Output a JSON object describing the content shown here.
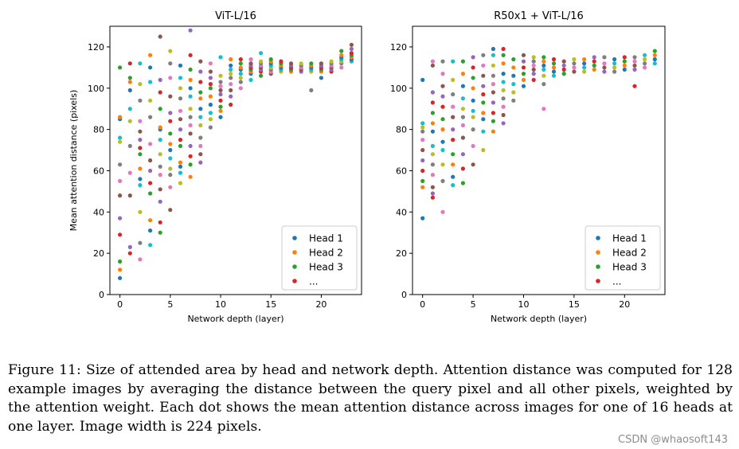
{
  "palette": [
    "#1f77b4",
    "#ff7f0e",
    "#2ca02c",
    "#d62728",
    "#9467bd",
    "#8c564b",
    "#e377c2",
    "#7f7f7f",
    "#bcbd22",
    "#17becf"
  ],
  "chart_data": [
    {
      "type": "scatter",
      "title": "ViT-L/16",
      "xlabel": "Network depth (layer)",
      "ylabel": "Mean attention distance (pixels)",
      "xlim": [
        -1,
        24
      ],
      "ylim": [
        0,
        130
      ],
      "xticks": [
        0,
        5,
        10,
        15,
        20
      ],
      "yticks": [
        0,
        20,
        40,
        60,
        80,
        100,
        120
      ],
      "legend": {
        "position": "lower-right",
        "entries": [
          "Head 1",
          "Head 2",
          "Head 3",
          "..."
        ]
      },
      "layers": [
        [
          8,
          12,
          16,
          29,
          37,
          48,
          55,
          63,
          74,
          76,
          85,
          86,
          110
        ],
        [
          20,
          23,
          48,
          59,
          72,
          84,
          90,
          99,
          103,
          105,
          112
        ],
        [
          17,
          25,
          40,
          53,
          56,
          61,
          68,
          71,
          75,
          79,
          84,
          94,
          102,
          112
        ],
        [
          24,
          31,
          36,
          49,
          54,
          60,
          65,
          73,
          86,
          94,
          103,
          110,
          116
        ],
        [
          30,
          35,
          45,
          51,
          58,
          62,
          68,
          75,
          80,
          81,
          90,
          98,
          104,
          125
        ],
        [
          41,
          52,
          58,
          61,
          66,
          70,
          73,
          78,
          84,
          88,
          96,
          105,
          112,
          118
        ],
        [
          54,
          59,
          62,
          64,
          72,
          75,
          80,
          85,
          89,
          95,
          100,
          105,
          111
        ],
        [
          57,
          63,
          67,
          72,
          78,
          82,
          86,
          90,
          96,
          100,
          104,
          109,
          116,
          128
        ],
        [
          64,
          68,
          72,
          76,
          82,
          86,
          90,
          95,
          98,
          103,
          108,
          113
        ],
        [
          81,
          85,
          88,
          92,
          96,
          100,
          102,
          105,
          108,
          112
        ],
        [
          86,
          89,
          91,
          94,
          97,
          99,
          101,
          103,
          106,
          115
        ],
        [
          92,
          96,
          99,
          102,
          105,
          107,
          109,
          111,
          114
        ],
        [
          100,
          103,
          105,
          107,
          109,
          110,
          112,
          114
        ],
        [
          104,
          107,
          108,
          109,
          110,
          111,
          112,
          114
        ],
        [
          106,
          108,
          109,
          110,
          111,
          112,
          113,
          117
        ],
        [
          107,
          108,
          109,
          110,
          111,
          112,
          113,
          114
        ],
        [
          108,
          109,
          110,
          111,
          112,
          113
        ],
        [
          108,
          109,
          110,
          111,
          112
        ],
        [
          108,
          109,
          110,
          111,
          112
        ],
        [
          99,
          108,
          109,
          110,
          111,
          112
        ],
        [
          105,
          108,
          109,
          110,
          111,
          112
        ],
        [
          108,
          109,
          110,
          111,
          112,
          113
        ],
        [
          110,
          112,
          113,
          114,
          115,
          116,
          118
        ],
        [
          113,
          114,
          115,
          116,
          117,
          119,
          121
        ]
      ]
    },
    {
      "type": "scatter",
      "title": "R50x1 + ViT-L/16",
      "xlabel": "Network depth (layer)",
      "ylabel": "",
      "xlim": [
        -1,
        24
      ],
      "ylim": [
        0,
        130
      ],
      "xticks": [
        0,
        5,
        10,
        15,
        20
      ],
      "yticks": [
        0,
        20,
        40,
        60,
        80,
        100,
        120
      ],
      "legend": {
        "position": "lower-right",
        "entries": [
          "Head 1",
          "Head 2",
          "Head 3",
          "..."
        ]
      },
      "layers": [
        [
          37,
          52,
          55,
          60,
          65,
          70,
          75,
          79,
          81,
          83,
          104
        ],
        [
          47,
          49,
          52,
          58,
          63,
          68,
          72,
          79,
          83,
          88,
          93,
          98,
          111,
          113
        ],
        [
          40,
          55,
          63,
          70,
          74,
          80,
          85,
          91,
          96,
          101,
          107,
          113
        ],
        [
          53,
          57,
          63,
          68,
          75,
          80,
          86,
          91,
          97,
          104,
          113
        ],
        [
          54,
          61,
          68,
          76,
          82,
          86,
          90,
          95,
          101,
          107,
          113
        ],
        [
          63,
          72,
          80,
          86,
          89,
          94,
          100,
          105,
          110,
          115
        ],
        [
          70,
          79,
          85,
          88,
          93,
          97,
          101,
          106,
          111,
          116
        ],
        [
          79,
          84,
          88,
          93,
          98,
          102,
          106,
          111,
          116,
          119
        ],
        [
          83,
          87,
          91,
          95,
          99,
          103,
          107,
          112,
          116,
          119
        ],
        [
          94,
          98,
          102,
          106,
          110,
          114
        ],
        [
          101,
          104,
          107,
          110,
          113,
          116
        ],
        [
          104,
          107,
          109,
          111,
          113,
          115
        ],
        [
          90,
          102,
          106,
          109,
          111,
          113,
          115
        ],
        [
          106,
          108,
          110,
          112,
          114
        ],
        [
          107,
          109,
          111,
          113
        ],
        [
          108,
          110,
          112,
          114
        ],
        [
          108,
          110,
          112,
          114
        ],
        [
          109,
          111,
          113,
          115
        ],
        [
          108,
          110,
          112,
          115
        ],
        [
          108,
          110,
          112,
          114
        ],
        [
          109,
          111,
          113,
          115
        ],
        [
          101,
          109,
          111,
          113,
          115
        ],
        [
          110,
          112,
          114,
          116
        ],
        [
          112,
          114,
          116,
          118
        ]
      ]
    }
  ],
  "caption": "Figure 11: Size of attended area by head and network depth. Attention distance was computed for 128 example images by averaging the distance between the query pixel and all other pixels, weighted by the attention weight. Each dot shows the mean attention distance across images for one of 16 heads at one layer. Image width is 224 pixels.",
  "watermark": "CSDN @whaosoft143"
}
